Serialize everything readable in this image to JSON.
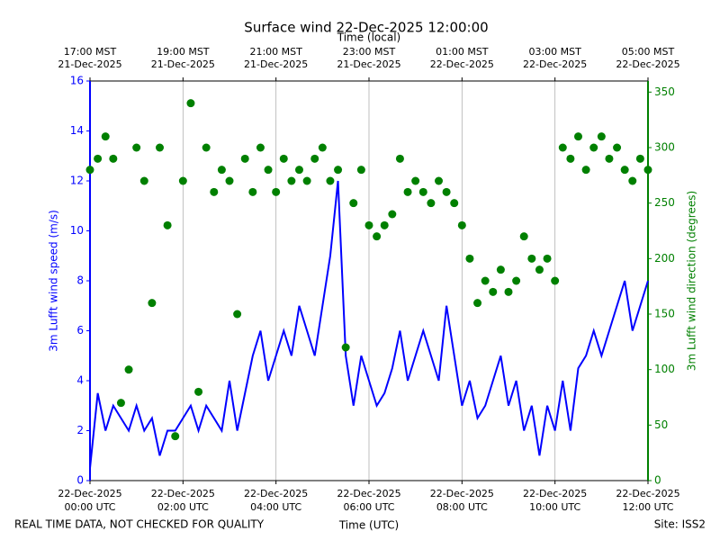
{
  "chart_data": {
    "type": "line",
    "title": "Surface wind 22-Dec-2025 12:00:00",
    "xlabel": "Time (UTC)",
    "x2label": "Time (local)",
    "ylabel": "3m Lufft wind speed (m/s)",
    "y2label": "3m Lufft wind direction (degrees)",
    "footer_left": "REAL TIME DATA, NOT CHECKED FOR QUALITY",
    "footer_right": "Site: ISS2",
    "grid": true,
    "xlim": [
      "2025-12-22T00:00",
      "2025-12-22T12:00"
    ],
    "xticks": [
      {
        "value": "2025-12-22T00:00",
        "label": "22-Dec-2025\n00:00 UTC"
      },
      {
        "value": "2025-12-22T02:00",
        "label": "22-Dec-2025\n02:00 UTC"
      },
      {
        "value": "2025-12-22T04:00",
        "label": "22-Dec-2025\n04:00 UTC"
      },
      {
        "value": "2025-12-22T06:00",
        "label": "22-Dec-2025\n06:00 UTC"
      },
      {
        "value": "2025-12-22T08:00",
        "label": "22-Dec-2025\n08:00 UTC"
      },
      {
        "value": "2025-12-22T10:00",
        "label": "22-Dec-2025\n10:00 UTC"
      },
      {
        "value": "2025-12-22T12:00",
        "label": "22-Dec-2025\n12:00 UTC"
      }
    ],
    "x2ticks": [
      {
        "value": "2025-12-22T00:00",
        "label": "17:00 MST\n21-Dec-2025"
      },
      {
        "value": "2025-12-22T02:00",
        "label": "19:00 MST\n21-Dec-2025"
      },
      {
        "value": "2025-12-22T04:00",
        "label": "21:00 MST\n21-Dec-2025"
      },
      {
        "value": "2025-12-22T06:00",
        "label": "23:00 MST\n21-Dec-2025"
      },
      {
        "value": "2025-12-22T08:00",
        "label": "01:00 MST\n22-Dec-2025"
      },
      {
        "value": "2025-12-22T10:00",
        "label": "03:00 MST\n22-Dec-2025"
      },
      {
        "value": "2025-12-22T12:00",
        "label": "05:00 MST\n22-Dec-2025"
      }
    ],
    "ylim": [
      0,
      16
    ],
    "yticks": [
      0,
      2,
      4,
      6,
      8,
      10,
      12,
      14,
      16
    ],
    "y2lim": [
      0,
      360
    ],
    "y2ticks": [
      0,
      50,
      100,
      150,
      200,
      250,
      300,
      350
    ],
    "x": [
      "2025-12-22T00:00",
      "2025-12-22T00:10",
      "2025-12-22T00:20",
      "2025-12-22T00:30",
      "2025-12-22T00:40",
      "2025-12-22T00:50",
      "2025-12-22T01:00",
      "2025-12-22T01:10",
      "2025-12-22T01:20",
      "2025-12-22T01:30",
      "2025-12-22T01:40",
      "2025-12-22T01:50",
      "2025-12-22T02:00",
      "2025-12-22T02:10",
      "2025-12-22T02:20",
      "2025-12-22T02:30",
      "2025-12-22T02:40",
      "2025-12-22T02:50",
      "2025-12-22T03:00",
      "2025-12-22T03:10",
      "2025-12-22T03:20",
      "2025-12-22T03:30",
      "2025-12-22T03:40",
      "2025-12-22T03:50",
      "2025-12-22T04:00",
      "2025-12-22T04:10",
      "2025-12-22T04:20",
      "2025-12-22T04:30",
      "2025-12-22T04:40",
      "2025-12-22T04:50",
      "2025-12-22T05:00",
      "2025-12-22T05:10",
      "2025-12-22T05:20",
      "2025-12-22T05:30",
      "2025-12-22T05:40",
      "2025-12-22T05:50",
      "2025-12-22T06:00",
      "2025-12-22T06:10",
      "2025-12-22T06:20",
      "2025-12-22T06:30",
      "2025-12-22T06:40",
      "2025-12-22T06:50",
      "2025-12-22T07:00",
      "2025-12-22T07:10",
      "2025-12-22T07:20",
      "2025-12-22T07:30",
      "2025-12-22T07:40",
      "2025-12-22T07:50",
      "2025-12-22T08:00",
      "2025-12-22T08:10",
      "2025-12-22T08:20",
      "2025-12-22T08:30",
      "2025-12-22T08:40",
      "2025-12-22T08:50",
      "2025-12-22T09:00",
      "2025-12-22T09:10",
      "2025-12-22T09:20",
      "2025-12-22T09:30",
      "2025-12-22T09:40",
      "2025-12-22T09:50",
      "2025-12-22T10:00",
      "2025-12-22T10:10",
      "2025-12-22T10:20",
      "2025-12-22T10:30",
      "2025-12-22T10:40",
      "2025-12-22T10:50",
      "2025-12-22T11:00",
      "2025-12-22T11:10",
      "2025-12-22T11:20",
      "2025-12-22T11:30",
      "2025-12-22T11:40",
      "2025-12-22T11:50",
      "2025-12-22T12:00"
    ],
    "series": [
      {
        "type": "line",
        "color": "#0000ff",
        "axis": "y",
        "values": [
          0.5,
          3.5,
          2,
          3,
          2.5,
          2,
          3,
          2,
          2.5,
          1,
          2,
          2,
          2.5,
          3,
          2,
          3,
          2.5,
          2,
          4,
          2,
          3.5,
          5,
          6,
          4,
          5,
          6,
          5,
          7,
          6,
          5,
          7,
          9,
          12,
          5,
          3,
          5,
          4,
          3,
          3.5,
          4.5,
          6,
          4,
          5,
          6,
          5,
          4,
          7,
          5,
          3,
          4,
          2.5,
          3,
          4,
          5,
          3,
          4,
          2,
          3,
          1,
          3,
          2,
          4,
          2,
          4.5,
          5,
          6,
          5,
          6,
          7,
          8,
          6,
          7,
          8
        ]
      },
      {
        "type": "scatter",
        "color": "#008000",
        "axis": "y2",
        "values": [
          280,
          290,
          310,
          290,
          70,
          100,
          300,
          270,
          160,
          300,
          230,
          40,
          270,
          340,
          80,
          300,
          260,
          280,
          270,
          150,
          290,
          260,
          300,
          280,
          260,
          290,
          270,
          280,
          270,
          290,
          300,
          270,
          280,
          120,
          250,
          280,
          230,
          220,
          230,
          240,
          290,
          260,
          270,
          260,
          250,
          270,
          260,
          250,
          230,
          200,
          160,
          180,
          170,
          190,
          170,
          180,
          220,
          200,
          190,
          200,
          180,
          300,
          290,
          310,
          280,
          300,
          310,
          290,
          300,
          280,
          270,
          290,
          280
        ]
      }
    ]
  }
}
